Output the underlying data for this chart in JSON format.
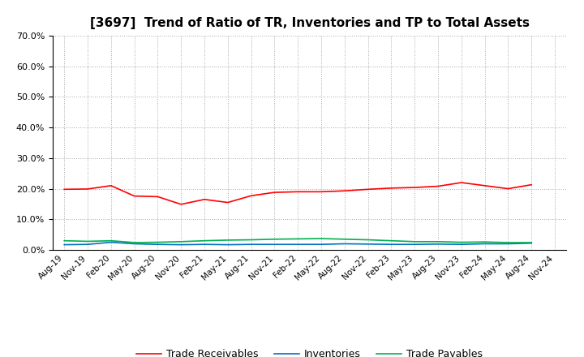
{
  "title": "[3697]  Trend of Ratio of TR, Inventories and TP to Total Assets",
  "x_labels": [
    "Aug-19",
    "Nov-19",
    "Feb-20",
    "May-20",
    "Aug-20",
    "Nov-20",
    "Feb-21",
    "May-21",
    "Aug-21",
    "Nov-21",
    "Feb-22",
    "May-22",
    "Aug-22",
    "Nov-22",
    "Feb-23",
    "May-23",
    "Aug-23",
    "Nov-23",
    "Feb-24",
    "May-24",
    "Aug-24",
    "Nov-24"
  ],
  "trade_receivables": [
    0.198,
    0.199,
    0.21,
    0.176,
    0.174,
    0.149,
    0.165,
    0.155,
    0.177,
    0.188,
    0.19,
    0.19,
    0.193,
    0.198,
    0.202,
    0.204,
    0.208,
    0.22,
    0.21,
    0.2,
    0.213,
    null
  ],
  "inventories": [
    0.017,
    0.018,
    0.025,
    0.02,
    0.018,
    0.017,
    0.018,
    0.017,
    0.018,
    0.018,
    0.018,
    0.018,
    0.02,
    0.019,
    0.018,
    0.018,
    0.019,
    0.018,
    0.02,
    0.02,
    0.022,
    null
  ],
  "trade_payables": [
    0.03,
    0.028,
    0.03,
    0.024,
    0.025,
    0.027,
    0.03,
    0.032,
    0.033,
    0.035,
    0.036,
    0.037,
    0.035,
    0.033,
    0.03,
    0.027,
    0.027,
    0.025,
    0.026,
    0.024,
    0.024,
    null
  ],
  "tr_color": "#ff0000",
  "inv_color": "#0070c0",
  "tp_color": "#00b050",
  "ylim": [
    0.0,
    0.7
  ],
  "yticks": [
    0.0,
    0.1,
    0.2,
    0.3,
    0.4,
    0.5,
    0.6,
    0.7
  ],
  "background_color": "#ffffff",
  "grid_color": "#aaaaaa",
  "legend_labels": [
    "Trade Receivables",
    "Inventories",
    "Trade Payables"
  ]
}
